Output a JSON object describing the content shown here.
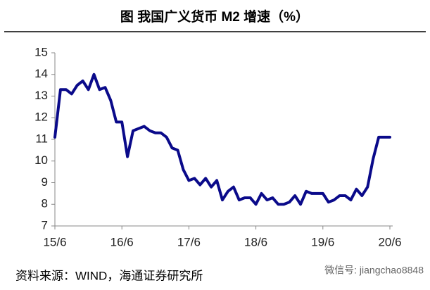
{
  "chart_data": {
    "type": "line",
    "title": "图    我国广义货币 M2 增速（%）",
    "source": "资料来源：WIND，海通证券研究所",
    "watermark": "微信号: jiangchao8848",
    "categories": [
      "15/6",
      null,
      null,
      null,
      null,
      null,
      null,
      null,
      null,
      null,
      null,
      null,
      "16/6",
      null,
      null,
      null,
      null,
      null,
      null,
      null,
      null,
      null,
      null,
      null,
      "17/6",
      null,
      null,
      null,
      null,
      null,
      null,
      null,
      null,
      null,
      null,
      null,
      "18/6",
      null,
      null,
      null,
      null,
      null,
      null,
      null,
      null,
      null,
      null,
      null,
      "19/6",
      null,
      null,
      null,
      null,
      null,
      null,
      null,
      null,
      null,
      null,
      null,
      "20/6"
    ],
    "series": [
      {
        "name": "M2",
        "color": "#0a0a8a",
        "values": [
          11.1,
          13.3,
          13.3,
          13.1,
          13.5,
          13.7,
          13.3,
          14.0,
          13.3,
          13.4,
          12.8,
          11.8,
          11.8,
          10.2,
          11.4,
          11.5,
          11.6,
          11.4,
          11.3,
          11.3,
          11.1,
          10.6,
          10.5,
          9.6,
          9.1,
          9.2,
          8.9,
          9.2,
          8.8,
          9.1,
          8.2,
          8.6,
          8.8,
          8.2,
          8.3,
          8.3,
          8.0,
          8.5,
          8.2,
          8.3,
          8.0,
          8.0,
          8.1,
          8.4,
          8.0,
          8.6,
          8.5,
          8.5,
          8.5,
          8.1,
          8.2,
          8.4,
          8.4,
          8.2,
          8.7,
          8.4,
          8.8,
          10.1,
          11.1,
          11.1,
          11.1
        ]
      }
    ],
    "ylim": [
      7,
      15
    ],
    "yticks": [
      7,
      8,
      9,
      10,
      11,
      12,
      13,
      14,
      15
    ],
    "grid": false
  }
}
